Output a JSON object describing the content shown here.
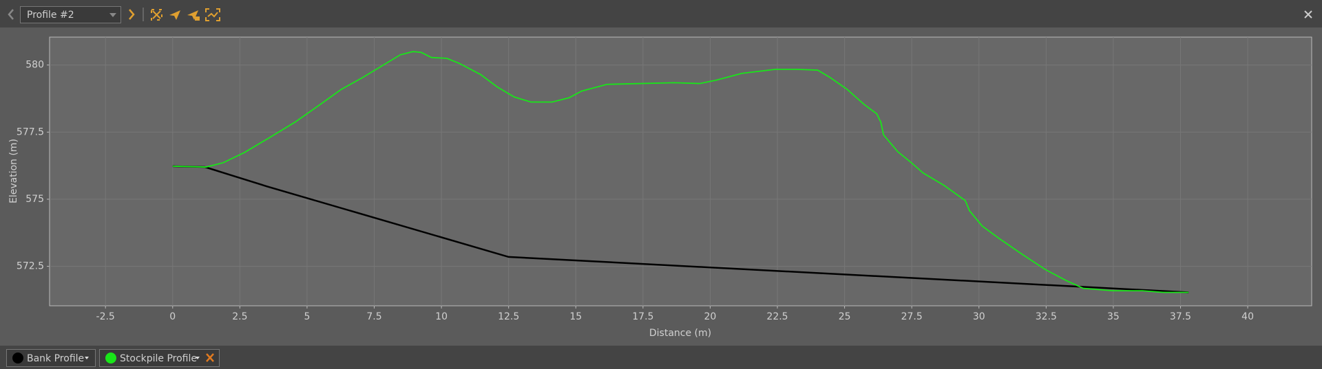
{
  "toolbar": {
    "profile_name": "Profile #2"
  },
  "chart_data": {
    "type": "line",
    "x_label": "Distance (m)",
    "y_label": "Elevation (m)",
    "xlim": [
      -4.58,
      42.38
    ],
    "ylim": [
      571.03,
      581.04
    ],
    "xticks": [
      -2.5,
      0,
      2.5,
      5,
      7.5,
      10,
      12.5,
      15,
      17.5,
      20,
      22.5,
      25,
      27.5,
      30,
      32.5,
      35,
      37.5,
      40
    ],
    "yticks": [
      572.5,
      575,
      577.5,
      580
    ],
    "grid": true,
    "series": [
      {
        "name": "Bank Profile",
        "color": "#000000",
        "x": [
          0,
          1.2,
          3.5,
          12.5,
          37.8
        ],
        "values": [
          576.23,
          576.2,
          575.48,
          572.85,
          571.53
        ]
      },
      {
        "name": "Stockpile Profile",
        "color": "#19e619",
        "x": [
          0,
          1.25,
          1.88,
          2.67,
          3.61,
          4.55,
          5.49,
          6.27,
          7.06,
          7.84,
          8.47,
          8.94,
          9.25,
          9.63,
          10.2,
          10.67,
          11.45,
          12.08,
          12.71,
          13.33,
          14.12,
          14.75,
          15.22,
          16.16,
          17.41,
          18.67,
          19.61,
          20.24,
          21.18,
          22.43,
          23.22,
          24,
          24.47,
          25.1,
          25.73,
          26.2,
          26.35,
          26.45,
          26.98,
          27.45,
          27.92,
          28.71,
          29.49,
          29.65,
          30.12,
          30.75,
          31.53,
          32.47,
          33.25,
          33.88,
          34.98,
          36.08,
          36.86,
          37.8
        ],
        "values": [
          576.23,
          576.2,
          576.36,
          576.74,
          577.3,
          577.87,
          578.53,
          579.09,
          579.53,
          580,
          580.38,
          580.5,
          580.47,
          580.28,
          580.25,
          580.06,
          579.65,
          579.18,
          578.81,
          578.62,
          578.62,
          578.78,
          579.03,
          579.28,
          579.31,
          579.34,
          579.31,
          579.44,
          579.69,
          579.84,
          579.84,
          579.81,
          579.53,
          579.09,
          578.53,
          578.18,
          577.87,
          577.4,
          576.77,
          576.39,
          575.98,
          575.51,
          574.95,
          574.57,
          574,
          573.54,
          573,
          572.38,
          571.97,
          571.68,
          571.59,
          571.59,
          571.53,
          571.53
        ]
      }
    ]
  }
}
